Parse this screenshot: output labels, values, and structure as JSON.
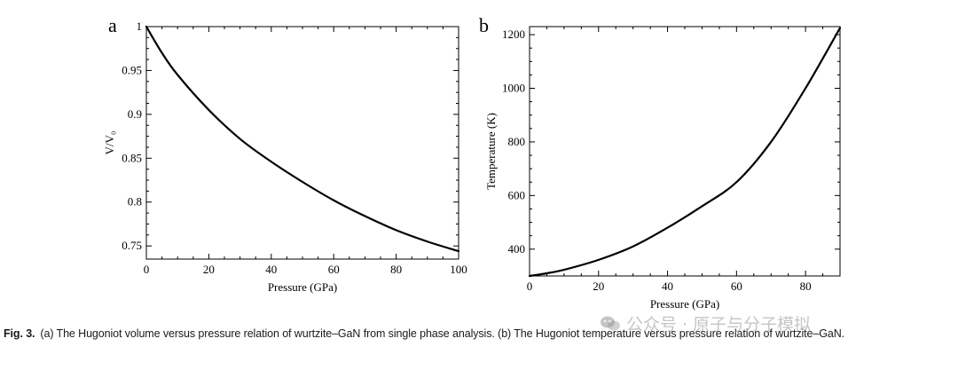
{
  "chart_data": [
    {
      "type": "line",
      "panel": "a",
      "xlabel": "Pressure (GPa)",
      "ylabel": "V/V₀",
      "xlim": [
        0,
        100
      ],
      "ylim": [
        0.735,
        1.0
      ],
      "xticks": [
        0,
        20,
        40,
        60,
        80,
        100
      ],
      "yticks": [
        0.75,
        0.8,
        0.85,
        0.9,
        0.95,
        1
      ],
      "ytick_labels": [
        "0.75",
        "0.8",
        "0.85",
        "0.9",
        "0.95",
        "1"
      ],
      "series": [
        {
          "name": "Hugoniot volume",
          "x": [
            0,
            5,
            10,
            20,
            30,
            40,
            50,
            60,
            70,
            80,
            90,
            100
          ],
          "y": [
            1.0,
            0.97,
            0.945,
            0.905,
            0.872,
            0.846,
            0.823,
            0.802,
            0.784,
            0.768,
            0.755,
            0.744
          ]
        }
      ]
    },
    {
      "type": "line",
      "panel": "b",
      "xlabel": "Pressure (GPa)",
      "ylabel": "Temperature (K)",
      "xlim": [
        0,
        90
      ],
      "ylim": [
        300,
        1230
      ],
      "xticks": [
        0,
        20,
        40,
        60,
        80
      ],
      "yticks": [
        400,
        600,
        800,
        1000,
        1200
      ],
      "ytick_labels": [
        "400",
        "600",
        "800",
        "1000",
        "1200"
      ],
      "series": [
        {
          "name": "Hugoniot temperature",
          "x": [
            0,
            5,
            10,
            20,
            30,
            40,
            50,
            60,
            70,
            80,
            90
          ],
          "y": [
            300,
            310,
            323,
            360,
            410,
            480,
            560,
            650,
            800,
            1000,
            1225
          ]
        }
      ]
    }
  ],
  "caption": {
    "label": "Fig. 3.",
    "text": "(a) The Hugoniot volume versus pressure relation of wurtzite–GaN from single phase analysis. (b) The Hugoniot temperature versus pressure relation of wurtzite–GaN."
  },
  "watermark": {
    "text": "公众号 · 原子与分子模拟",
    "icon": "wechat-icon"
  }
}
